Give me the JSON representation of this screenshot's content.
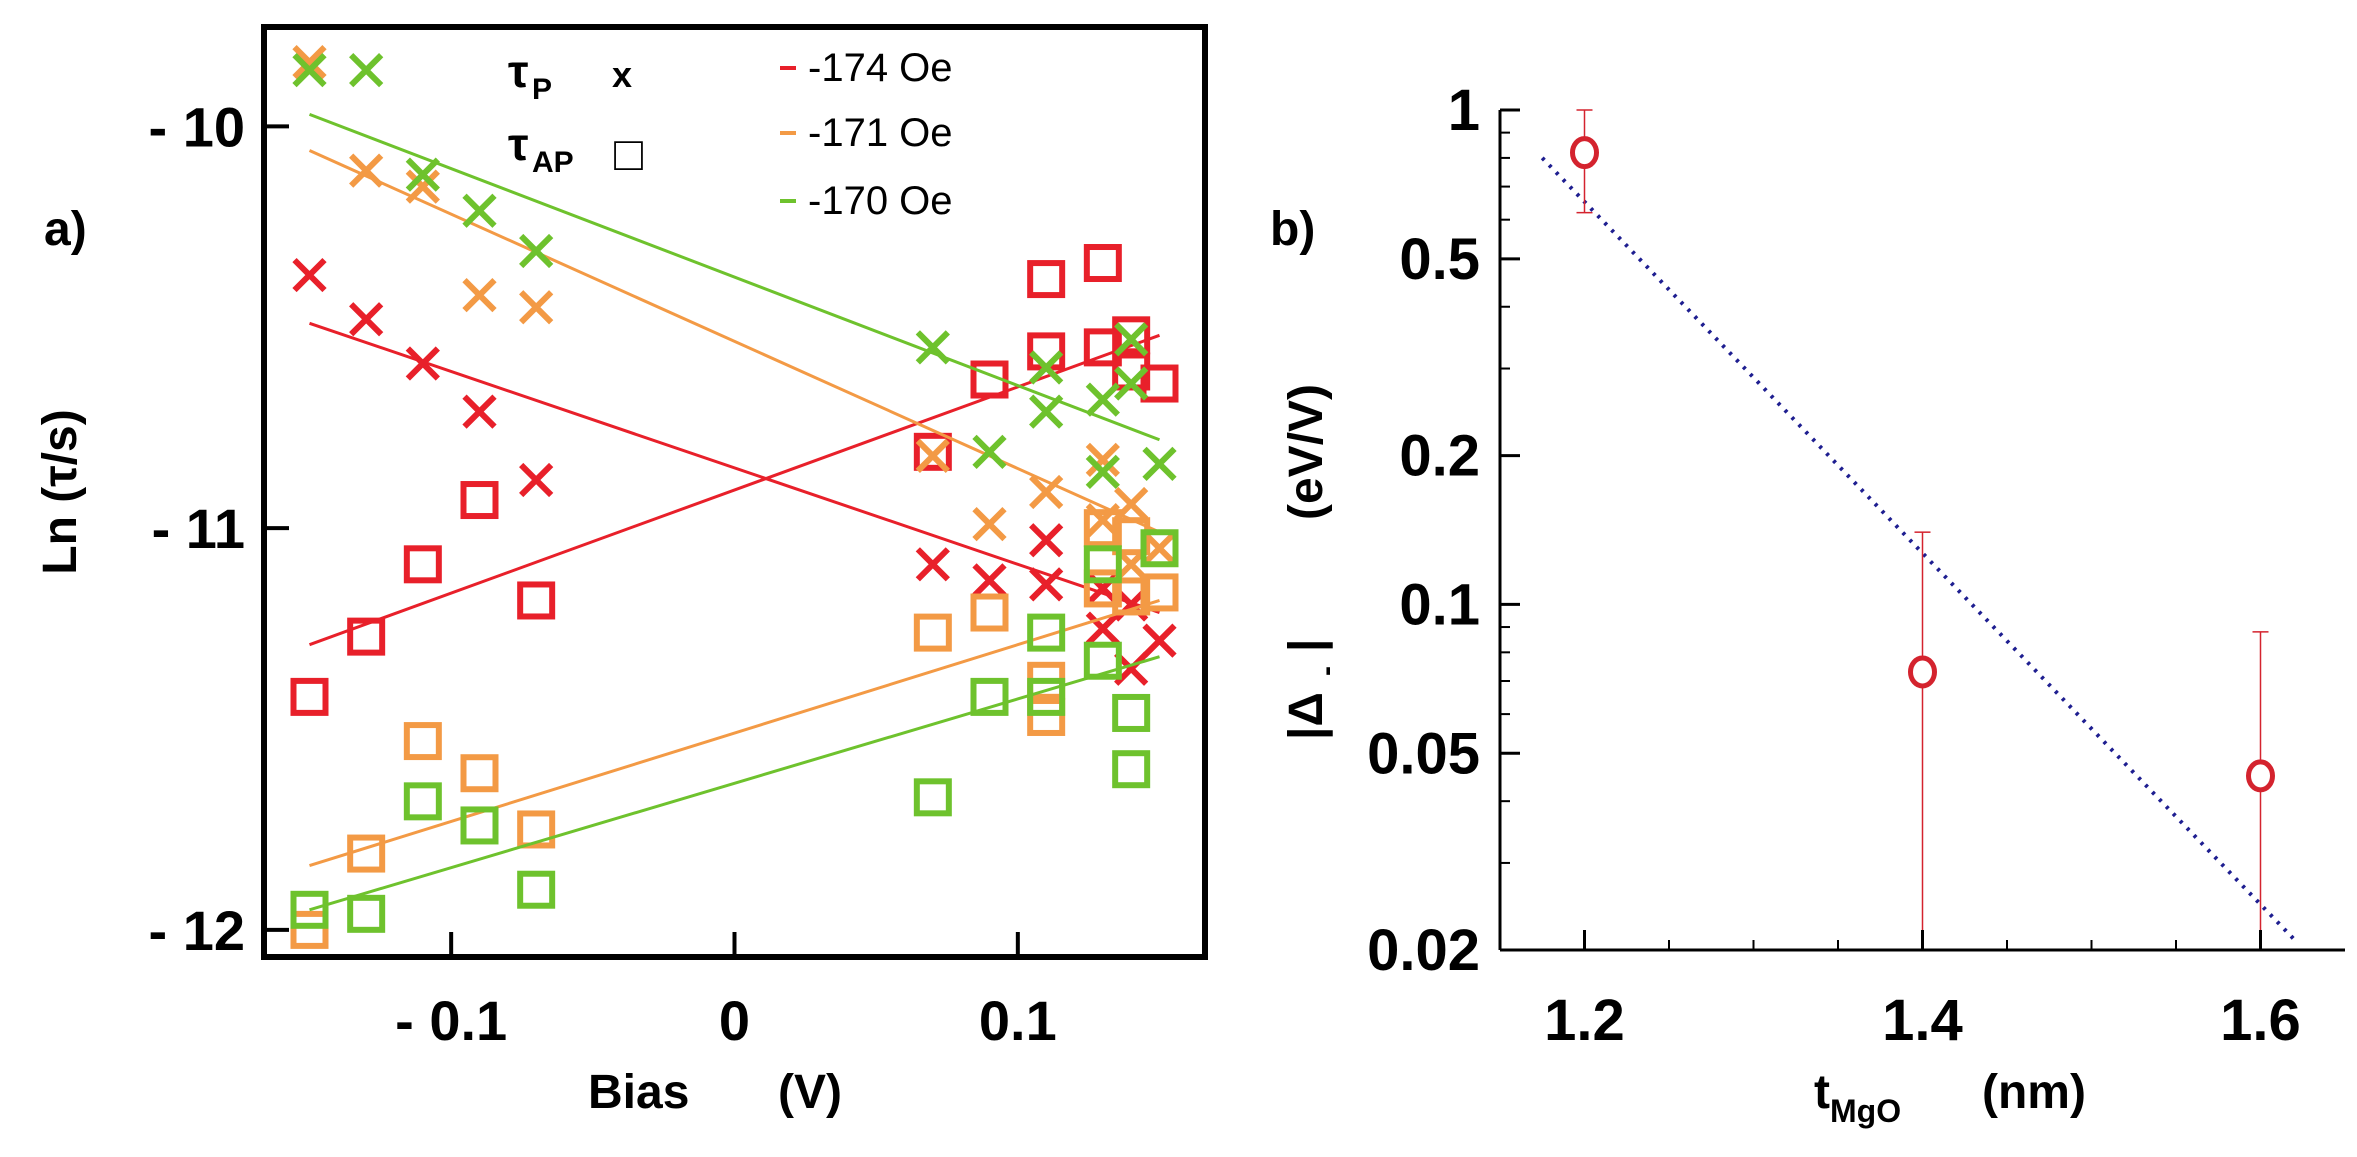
{
  "chart_data": [
    {
      "type": "scatter",
      "panel_label": "a)",
      "xlabel": "Bias",
      "xunit": "(V)",
      "ylabel": "Ln (τ/s)",
      "xlim": [
        -0.165,
        0.165
      ],
      "ylim": [
        -12.06,
        -9.76
      ],
      "xticks": [
        -0.1,
        0,
        0.1
      ],
      "xtick_labels": [
        "- 0.1",
        "0",
        "0.1"
      ],
      "yticks": [
        -10,
        -11,
        -12
      ],
      "ytick_labels": [
        "- 10",
        "- 11",
        "- 12"
      ],
      "marker_key": {
        "tp_symbol": "τ",
        "tp_sub": "P",
        "tp_marker": "x",
        "tap_symbol": "τ",
        "tap_sub": "AP",
        "tap_marker": "□"
      },
      "legend_position": "top-right",
      "grid": false,
      "series": [
        {
          "name": "-174 Oe",
          "color": "#e8202a",
          "p_points": [
            [
              -0.15,
              -10.37
            ],
            [
              -0.13,
              -10.48
            ],
            [
              -0.11,
              -10.59
            ],
            [
              -0.09,
              -10.71
            ],
            [
              -0.07,
              -10.88
            ],
            [
              0.07,
              -11.09
            ],
            [
              0.09,
              -11.13
            ],
            [
              0.11,
              -11.03
            ],
            [
              0.11,
              -11.14
            ],
            [
              0.13,
              -11.15
            ],
            [
              0.13,
              -11.25
            ],
            [
              0.14,
              -11.19
            ],
            [
              0.14,
              -11.35
            ],
            [
              0.15,
              -11.28
            ]
          ],
          "ap_points": [
            [
              -0.15,
              -11.42
            ],
            [
              -0.13,
              -11.27
            ],
            [
              -0.11,
              -11.09
            ],
            [
              -0.09,
              -10.93
            ],
            [
              -0.07,
              -11.18
            ],
            [
              0.07,
              -10.81
            ],
            [
              0.09,
              -10.63
            ],
            [
              0.11,
              -10.38
            ],
            [
              0.11,
              -10.56
            ],
            [
              0.13,
              -10.34
            ],
            [
              0.13,
              -10.55
            ],
            [
              0.14,
              -10.52
            ],
            [
              0.14,
              -10.61
            ],
            [
              0.15,
              -10.64
            ]
          ],
          "p_fit": [
            [
              -0.15,
              -10.49
            ],
            [
              0.15,
              -11.21
            ]
          ],
          "ap_fit": [
            [
              -0.15,
              -11.29
            ],
            [
              0.15,
              -10.52
            ]
          ]
        },
        {
          "name": "-171 Oe",
          "color": "#f39a45",
          "p_points": [
            [
              -0.15,
              -9.84
            ],
            [
              -0.13,
              -10.11
            ],
            [
              -0.11,
              -10.15
            ],
            [
              -0.09,
              -10.42
            ],
            [
              -0.07,
              -10.45
            ],
            [
              0.07,
              -10.82
            ],
            [
              0.09,
              -10.99
            ],
            [
              0.11,
              -10.91
            ],
            [
              0.13,
              -10.83
            ],
            [
              0.13,
              -10.98
            ],
            [
              0.14,
              -10.94
            ],
            [
              0.14,
              -11.09
            ],
            [
              0.15,
              -11.05
            ]
          ],
          "ap_points": [
            [
              -0.15,
              -12.0
            ],
            [
              -0.13,
              -11.81
            ],
            [
              -0.11,
              -11.53
            ],
            [
              -0.09,
              -11.61
            ],
            [
              -0.07,
              -11.75
            ],
            [
              0.07,
              -11.26
            ],
            [
              0.09,
              -11.21
            ],
            [
              0.11,
              -11.47
            ],
            [
              0.11,
              -11.38
            ],
            [
              0.13,
              -11.0
            ],
            [
              0.13,
              -11.15
            ],
            [
              0.14,
              -11.02
            ],
            [
              0.14,
              -11.17
            ],
            [
              0.15,
              -11.16
            ]
          ],
          "p_fit": [
            [
              -0.15,
              -10.06
            ],
            [
              0.15,
              -11.01
            ]
          ],
          "ap_fit": [
            [
              -0.15,
              -11.84
            ],
            [
              0.15,
              -11.18
            ]
          ]
        },
        {
          "name": "-170 Oe",
          "color": "#6ec22d",
          "p_points": [
            [
              -0.15,
              -9.86
            ],
            [
              -0.13,
              -9.86
            ],
            [
              -0.11,
              -10.12
            ],
            [
              -0.09,
              -10.21
            ],
            [
              -0.07,
              -10.31
            ],
            [
              0.07,
              -10.55
            ],
            [
              0.09,
              -10.81
            ],
            [
              0.11,
              -10.6
            ],
            [
              0.11,
              -10.71
            ],
            [
              0.13,
              -10.68
            ],
            [
              0.13,
              -10.86
            ],
            [
              0.14,
              -10.53
            ],
            [
              0.14,
              -10.64
            ],
            [
              0.15,
              -10.84
            ]
          ],
          "ap_points": [
            [
              -0.15,
              -11.95
            ],
            [
              -0.13,
              -11.96
            ],
            [
              -0.11,
              -11.68
            ],
            [
              -0.09,
              -11.74
            ],
            [
              -0.07,
              -11.9
            ],
            [
              0.07,
              -11.67
            ],
            [
              0.09,
              -11.42
            ],
            [
              0.11,
              -11.26
            ],
            [
              0.11,
              -11.42
            ],
            [
              0.13,
              -11.09
            ],
            [
              0.13,
              -11.33
            ],
            [
              0.14,
              -11.46
            ],
            [
              0.14,
              -11.6
            ],
            [
              0.15,
              -11.05
            ]
          ],
          "p_fit": [
            [
              -0.15,
              -9.97
            ],
            [
              0.15,
              -10.78
            ]
          ],
          "ap_fit": [
            [
              -0.15,
              -11.95
            ],
            [
              0.15,
              -11.32
            ]
          ]
        }
      ]
    },
    {
      "type": "scatter",
      "panel_label": "b)",
      "xlabel": "t",
      "xlabel_sub": "MgO",
      "xunit": "(nm)",
      "ylabel": "|Δ",
      "ylabel_sub": "-",
      "ylabel_close": "|",
      "yunit": "(eV/V)",
      "yscale": "log",
      "xlim": [
        1.15,
        1.65
      ],
      "ylim": [
        0.02,
        1
      ],
      "xticks": [
        1.2,
        1.4,
        1.6
      ],
      "xtick_labels": [
        "1.2",
        "1.4",
        "1.6"
      ],
      "yticks": [
        1,
        0.5,
        0.2,
        0.1,
        0.05,
        0.02
      ],
      "ytick_labels": [
        "1",
        "0.5",
        "0.2",
        "0.1",
        "0.05",
        "0.02"
      ],
      "grid": false,
      "marker_color": "#d4232e",
      "fit_color": "#1e1e90",
      "points": [
        {
          "x": 1.2,
          "y": 0.82,
          "err_low": 0.62,
          "err_high": 1.0
        },
        {
          "x": 1.4,
          "y": 0.073,
          "err_low": 0.02,
          "err_high": 0.14
        },
        {
          "x": 1.6,
          "y": 0.045,
          "err_low": 0.02,
          "err_high": 0.088
        }
      ],
      "fit": [
        [
          1.175,
          0.8
        ],
        [
          1.62,
          0.021
        ]
      ]
    }
  ]
}
